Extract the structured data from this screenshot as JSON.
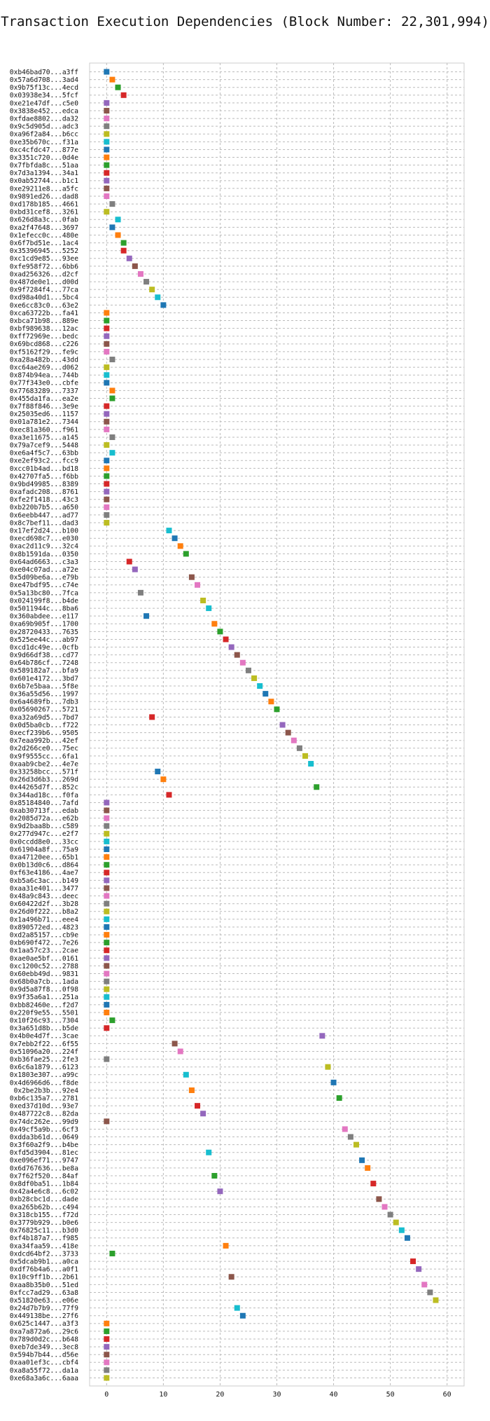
{
  "chart_data": {
    "type": "scatter",
    "title": "Transaction Execution Dependencies (Block Number: 22,301,994)",
    "xlabel": "",
    "ylabel": "",
    "xlim": [
      -3,
      63
    ],
    "xticks": [
      0,
      10,
      20,
      30,
      40,
      50,
      60
    ],
    "grid": true,
    "marker": "square",
    "colors": [
      "#1f77b4",
      "#ff7f0e",
      "#2ca02c",
      "#d62728",
      "#9467bd",
      "#8c564b",
      "#e377c2",
      "#7f7f7f",
      "#bcbd22",
      "#17becf"
    ],
    "transactions": [
      {
        "label": "0xb46bad70...a3ff",
        "x": 0,
        "c": 0
      },
      {
        "label": "0x57a6d708...3ad4",
        "x": 1,
        "c": 1
      },
      {
        "label": "0x9b75f13c...4ecd",
        "x": 2,
        "c": 2
      },
      {
        "label": "0x03938e34...5fcf",
        "x": 3,
        "c": 3
      },
      {
        "label": "0xe21e47df...c5e0",
        "x": 0,
        "c": 4
      },
      {
        "label": "0x3838e452...edca",
        "x": 0,
        "c": 5
      },
      {
        "label": "0xfdae8802...da32",
        "x": 0,
        "c": 6
      },
      {
        "label": "0x9c5d905d...adc3",
        "x": 0,
        "c": 7
      },
      {
        "label": "0xa96f2a84...b6cc",
        "x": 0,
        "c": 8
      },
      {
        "label": "0xe35b670c...f31a",
        "x": 0,
        "c": 9
      },
      {
        "label": "0xc4cfdc47...877e",
        "x": 0,
        "c": 0
      },
      {
        "label": "0x3351c720...0d4e",
        "x": 0,
        "c": 1
      },
      {
        "label": "0x7fbfda8c...51aa",
        "x": 0,
        "c": 2
      },
      {
        "label": "0x7d3a1394...34a1",
        "x": 0,
        "c": 3
      },
      {
        "label": "0x0ab52744...b1c1",
        "x": 0,
        "c": 4
      },
      {
        "label": "0xe29211e8...a5fc",
        "x": 0,
        "c": 5
      },
      {
        "label": "0x9891ed26...dad8",
        "x": 0,
        "c": 6
      },
      {
        "label": "0xd178b185...4661",
        "x": 1,
        "c": 7
      },
      {
        "label": "0xbd31cef8...3261",
        "x": 0,
        "c": 8
      },
      {
        "label": "0x626d8a3c...0fab",
        "x": 2,
        "c": 9
      },
      {
        "label": "0xa2f47648...3697",
        "x": 1,
        "c": 0
      },
      {
        "label": "0x1efecc0c...480e",
        "x": 2,
        "c": 1
      },
      {
        "label": "0x6f7bd51e...1ac4",
        "x": 3,
        "c": 2
      },
      {
        "label": "0x35396945...5252",
        "x": 3,
        "c": 3
      },
      {
        "label": "0xc1cd9e85...93ee",
        "x": 4,
        "c": 4
      },
      {
        "label": "0xfe958f72...6bb6",
        "x": 5,
        "c": 5
      },
      {
        "label": "0xad256326...d2cf",
        "x": 6,
        "c": 6
      },
      {
        "label": "0x487de0e1...d00d",
        "x": 7,
        "c": 7
      },
      {
        "label": "0x9f7284f4...77ca",
        "x": 8,
        "c": 8
      },
      {
        "label": "0xd98a40d1...5bc4",
        "x": 9,
        "c": 9
      },
      {
        "label": "0xe6cc83c0...63e2",
        "x": 10,
        "c": 0
      },
      {
        "label": "0xca63722b...fa41",
        "x": 0,
        "c": 1
      },
      {
        "label": "0xbca71b98...889e",
        "x": 0,
        "c": 2
      },
      {
        "label": "0xbf989638...12ac",
        "x": 0,
        "c": 3
      },
      {
        "label": "0xff72969e...bedc",
        "x": 0,
        "c": 4
      },
      {
        "label": "0x69bcd868...c226",
        "x": 0,
        "c": 5
      },
      {
        "label": "0xf5162f29...fe9c",
        "x": 0,
        "c": 6
      },
      {
        "label": "0xa28a482b...43dd",
        "x": 1,
        "c": 7
      },
      {
        "label": "0xc64ae269...d062",
        "x": 0,
        "c": 8
      },
      {
        "label": "0x874b94ea...744b",
        "x": 0,
        "c": 9
      },
      {
        "label": "0x77f343e0...cbfe",
        "x": 0,
        "c": 0
      },
      {
        "label": "0x77683289...7337",
        "x": 1,
        "c": 1
      },
      {
        "label": "0x455da1fa...ea2e",
        "x": 1,
        "c": 2
      },
      {
        "label": "0x7f88f846...3e9e",
        "x": 0,
        "c": 3
      },
      {
        "label": "0x25035ed6...1157",
        "x": 0,
        "c": 4
      },
      {
        "label": "0x01a781e2...7344",
        "x": 0,
        "c": 5
      },
      {
        "label": "0xec81a360...f961",
        "x": 0,
        "c": 6
      },
      {
        "label": "0xa3e11675...a145",
        "x": 1,
        "c": 7
      },
      {
        "label": "0x79a7cef9...5448",
        "x": 0,
        "c": 8
      },
      {
        "label": "0xe6a4f5c7...63bb",
        "x": 1,
        "c": 9
      },
      {
        "label": "0xe2ef93c2...fcc9",
        "x": 0,
        "c": 0
      },
      {
        "label": "0xcc01b4ad...bd18",
        "x": 0,
        "c": 1
      },
      {
        "label": "0x42707fa5...f6bb",
        "x": 0,
        "c": 2
      },
      {
        "label": "0x9bd49985...8389",
        "x": 0,
        "c": 3
      },
      {
        "label": "0xafadc208...8761",
        "x": 0,
        "c": 4
      },
      {
        "label": "0xfe2f1418...43c3",
        "x": 0,
        "c": 5
      },
      {
        "label": "0xb220b7b5...a650",
        "x": 0,
        "c": 6
      },
      {
        "label": "0x6eebb447...ad77",
        "x": 0,
        "c": 7
      },
      {
        "label": "0x8c7bef11...dad3",
        "x": 0,
        "c": 8
      },
      {
        "label": "0x17ef2d24...b100",
        "x": 11,
        "c": 9
      },
      {
        "label": "0xecd698c7...e030",
        "x": 12,
        "c": 0
      },
      {
        "label": "0xac2d11c9...32c4",
        "x": 13,
        "c": 1
      },
      {
        "label": "0x8b1591da...0350",
        "x": 14,
        "c": 2
      },
      {
        "label": "0x64ad6663...c3a3",
        "x": 4,
        "c": 3
      },
      {
        "label": "0xe04c07ad...a72e",
        "x": 5,
        "c": 4
      },
      {
        "label": "0x5d09be6a...e79b",
        "x": 15,
        "c": 5
      },
      {
        "label": "0xe47bdf95...c74e",
        "x": 16,
        "c": 6
      },
      {
        "label": "0x5a13bc80...7fca",
        "x": 6,
        "c": 7
      },
      {
        "label": "0x024199f8...b4de",
        "x": 17,
        "c": 8
      },
      {
        "label": "0x5011944c...8ba6",
        "x": 18,
        "c": 9
      },
      {
        "label": "0x360abdee...e117",
        "x": 7,
        "c": 0
      },
      {
        "label": "0xa69b905f...1700",
        "x": 19,
        "c": 1
      },
      {
        "label": "0x28720433...7635",
        "x": 20,
        "c": 2
      },
      {
        "label": "0x525ee44c...ab97",
        "x": 21,
        "c": 3
      },
      {
        "label": "0xcd1dc49e...0cfb",
        "x": 22,
        "c": 4
      },
      {
        "label": "0x9d66df38...cd77",
        "x": 23,
        "c": 5
      },
      {
        "label": "0x64b786cf...7248",
        "x": 24,
        "c": 6
      },
      {
        "label": "0x589182a7...bfa9",
        "x": 25,
        "c": 7
      },
      {
        "label": "0x601e4172...3bd7",
        "x": 26,
        "c": 8
      },
      {
        "label": "0x6b7e5baa...5f8e",
        "x": 27,
        "c": 9
      },
      {
        "label": "0x36a55d56...1997",
        "x": 28,
        "c": 0
      },
      {
        "label": "0x6a4689fb...7db3",
        "x": 29,
        "c": 1
      },
      {
        "label": "0x05690267...5721",
        "x": 30,
        "c": 2
      },
      {
        "label": "0xa32a69d5...7bd7",
        "x": 8,
        "c": 3
      },
      {
        "label": "0x0d5ba0cb...f722",
        "x": 31,
        "c": 4
      },
      {
        "label": "0xecf239b6...9505",
        "x": 32,
        "c": 5
      },
      {
        "label": "0x7eaa992b...42ef",
        "x": 33,
        "c": 6
      },
      {
        "label": "0x2d266ce0...75ec",
        "x": 34,
        "c": 7
      },
      {
        "label": "0x9f9555cc...6fa1",
        "x": 35,
        "c": 8
      },
      {
        "label": "0xaab9cbe2...4e7e",
        "x": 36,
        "c": 9
      },
      {
        "label": "0x33258bcc...571f",
        "x": 9,
        "c": 0
      },
      {
        "label": "0x26d3d6b3...269d",
        "x": 10,
        "c": 1
      },
      {
        "label": "0x44265d7f...852c",
        "x": 37,
        "c": 2
      },
      {
        "label": "0x344ad18c...f0fa",
        "x": 11,
        "c": 3
      },
      {
        "label": "0x85184840...7afd",
        "x": 0,
        "c": 4
      },
      {
        "label": "0xab30713f...edab",
        "x": 0,
        "c": 5
      },
      {
        "label": "0x2085d72a...e62b",
        "x": 0,
        "c": 6
      },
      {
        "label": "0x9d2baa8b...c589",
        "x": 0,
        "c": 7
      },
      {
        "label": "0x277d947c...e2f7",
        "x": 0,
        "c": 8
      },
      {
        "label": "0x0ccdd8e0...33cc",
        "x": 0,
        "c": 9
      },
      {
        "label": "0x61904a8f...75a9",
        "x": 0,
        "c": 0
      },
      {
        "label": "0xa47120ee...65b1",
        "x": 0,
        "c": 1
      },
      {
        "label": "0x0b13d0c6...d864",
        "x": 0,
        "c": 2
      },
      {
        "label": "0xf63e4186...4ae7",
        "x": 0,
        "c": 3
      },
      {
        "label": "0xb5a6c3ac...b149",
        "x": 0,
        "c": 4
      },
      {
        "label": "0xaa31e401...3477",
        "x": 0,
        "c": 5
      },
      {
        "label": "0x48a9c843...deec",
        "x": 0,
        "c": 6
      },
      {
        "label": "0x60422d2f...3b28",
        "x": 0,
        "c": 7
      },
      {
        "label": "0x26d0f222...b8a2",
        "x": 0,
        "c": 8
      },
      {
        "label": "0x1a496b71...eee4",
        "x": 0,
        "c": 9
      },
      {
        "label": "0x890572ed...4823",
        "x": 0,
        "c": 0
      },
      {
        "label": "0xd2a85157...cb9e",
        "x": 0,
        "c": 1
      },
      {
        "label": "0xb690f472...7e26",
        "x": 0,
        "c": 2
      },
      {
        "label": "0x1aa57c23...2cae",
        "x": 0,
        "c": 3
      },
      {
        "label": "0xae0ae5bf...0161",
        "x": 0,
        "c": 4
      },
      {
        "label": "0xc1200c52...2788",
        "x": 0,
        "c": 5
      },
      {
        "label": "0x60ebb49d...9831",
        "x": 0,
        "c": 6
      },
      {
        "label": "0x68b0a7cb...1ada",
        "x": 0,
        "c": 7
      },
      {
        "label": "0x9d5a87f8...0f98",
        "x": 0,
        "c": 8
      },
      {
        "label": "0x9f35a6a1...251a",
        "x": 0,
        "c": 9
      },
      {
        "label": "0xbb82460e...f2d7",
        "x": 0,
        "c": 0
      },
      {
        "label": "0x220f9e55...5501",
        "x": 0,
        "c": 1
      },
      {
        "label": "0x10f26c93...7304",
        "x": 1,
        "c": 2
      },
      {
        "label": "0x3a651d8b...b5de",
        "x": 0,
        "c": 3
      },
      {
        "label": "0x4b0e4d7f...3cae",
        "x": 38,
        "c": 4
      },
      {
        "label": "0x7ebb2f22...6f55",
        "x": 12,
        "c": 5
      },
      {
        "label": "0x51096a20...224f",
        "x": 13,
        "c": 6
      },
      {
        "label": "0xb36fae25...2fe3",
        "x": 0,
        "c": 7
      },
      {
        "label": "0x6c6a1879...6123",
        "x": 39,
        "c": 8
      },
      {
        "label": "0x1803e307...a99c",
        "x": 14,
        "c": 9
      },
      {
        "label": "0x4d6966d6...f8de",
        "x": 40,
        "c": 0
      },
      {
        "label": "0x2be2b3b...92e4",
        "x": 15,
        "c": 1
      },
      {
        "label": "0xb6c135a7...2781",
        "x": 41,
        "c": 2
      },
      {
        "label": "0xed37d10d...93e7",
        "x": 16,
        "c": 3
      },
      {
        "label": "0x487722c8...82da",
        "x": 17,
        "c": 4
      },
      {
        "label": "0x74dc262e...99d9",
        "x": 0,
        "c": 5
      },
      {
        "label": "0x49cf5a9b...6cf3",
        "x": 42,
        "c": 6
      },
      {
        "label": "0xdda3b61d...0649",
        "x": 43,
        "c": 7
      },
      {
        "label": "0x3f60a2f9...b4be",
        "x": 44,
        "c": 8
      },
      {
        "label": "0xfd5d3904...81ec",
        "x": 18,
        "c": 9
      },
      {
        "label": "0xe096ef71...9747",
        "x": 45,
        "c": 0
      },
      {
        "label": "0x6d767636...be8a",
        "x": 46,
        "c": 1
      },
      {
        "label": "0x7f62f520...84af",
        "x": 19,
        "c": 2
      },
      {
        "label": "0x8df0ba51...1b84",
        "x": 47,
        "c": 3
      },
      {
        "label": "0x42a4e6c8...6c02",
        "x": 20,
        "c": 4
      },
      {
        "label": "0xb28cbc1d...dade",
        "x": 48,
        "c": 5
      },
      {
        "label": "0xa265b62b...c494",
        "x": 49,
        "c": 6
      },
      {
        "label": "0x318cb155...f72d",
        "x": 50,
        "c": 7
      },
      {
        "label": "0x3779b929...b0e6",
        "x": 51,
        "c": 8
      },
      {
        "label": "0x76825c11...b3d0",
        "x": 52,
        "c": 9
      },
      {
        "label": "0xf4b187a7...f985",
        "x": 53,
        "c": 0
      },
      {
        "label": "0xa34faa59...418e",
        "x": 21,
        "c": 1
      },
      {
        "label": "0xdcd64bf2...3733",
        "x": 1,
        "c": 2
      },
      {
        "label": "0x5dcab9b1...a0ca",
        "x": 54,
        "c": 3
      },
      {
        "label": "0xdf76b4a6...a0f1",
        "x": 55,
        "c": 4
      },
      {
        "label": "0x10c9ff1b...2b61",
        "x": 22,
        "c": 5
      },
      {
        "label": "0xaa8b35b0...51ed",
        "x": 56,
        "c": 6
      },
      {
        "label": "0xfcc7ad29...63a8",
        "x": 57,
        "c": 7
      },
      {
        "label": "0x51820e63...e06e",
        "x": 58,
        "c": 8
      },
      {
        "label": "0x24d7b7b9...77f9",
        "x": 23,
        "c": 9
      },
      {
        "label": "0x449138be...27f6",
        "x": 24,
        "c": 0
      },
      {
        "label": "0x625c1447...a3f3",
        "x": 0,
        "c": 1
      },
      {
        "label": "0xa7a872a6...29c6",
        "x": 0,
        "c": 2
      },
      {
        "label": "0x789d0d2c...b648",
        "x": 0,
        "c": 3
      },
      {
        "label": "0xeb7de349...3ec8",
        "x": 0,
        "c": 4
      },
      {
        "label": "0x594b7b44...d56e",
        "x": 0,
        "c": 5
      },
      {
        "label": "0xaa01ef3c...cbf4",
        "x": 0,
        "c": 6
      },
      {
        "label": "0xa8a55f72...da1a",
        "x": 0,
        "c": 7
      },
      {
        "label": "0xe68a3a6c...6aaa",
        "x": 0,
        "c": 8
      }
    ]
  }
}
